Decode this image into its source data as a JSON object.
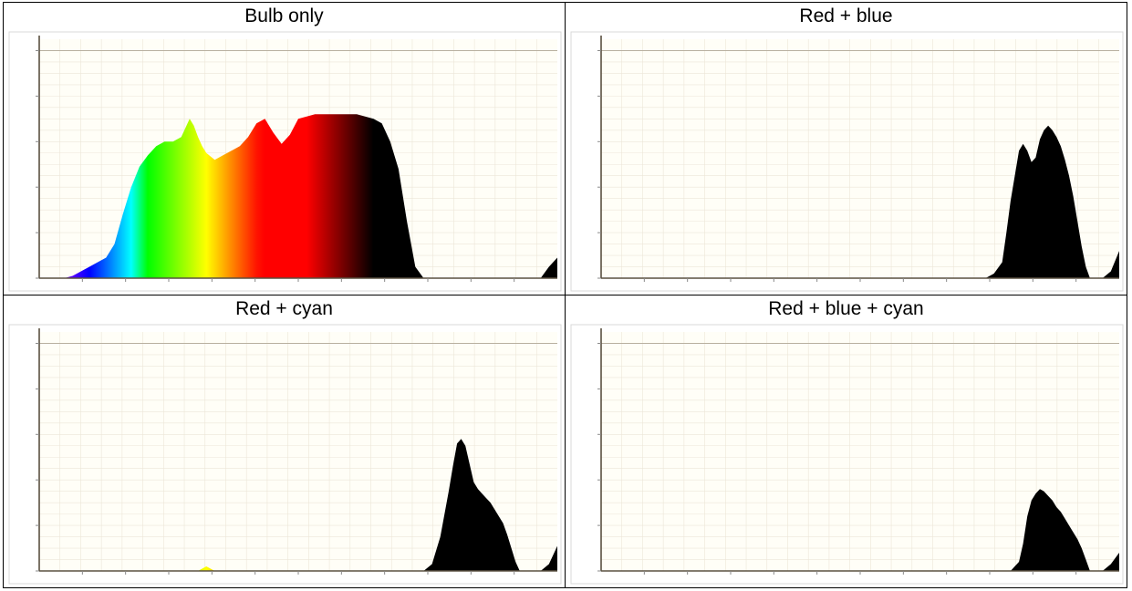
{
  "panels": [
    {
      "title": "Bulb only"
    },
    {
      "title": "Red + blue"
    },
    {
      "title": "Red + cyan"
    },
    {
      "title": "Red + blue + cyan"
    }
  ],
  "chart_data": [
    {
      "type": "area",
      "title": "Bulb only",
      "fill": "spectrum",
      "xlim": [
        380,
        1000
      ],
      "ylim": [
        0,
        105
      ],
      "x": [
        380,
        390,
        400,
        410,
        420,
        430,
        440,
        450,
        460,
        470,
        480,
        490,
        500,
        510,
        520,
        530,
        540,
        550,
        555,
        560,
        565,
        570,
        575,
        580,
        590,
        600,
        610,
        620,
        630,
        640,
        650,
        660,
        670,
        680,
        690,
        700,
        710,
        720,
        730,
        740,
        750,
        760,
        770,
        780,
        790,
        800,
        810,
        820,
        830,
        840,
        850,
        860,
        870,
        880,
        890,
        900,
        910,
        920,
        930,
        940,
        950,
        960,
        970,
        980,
        990,
        1000
      ],
      "y": [
        0,
        0,
        0,
        0,
        1,
        3,
        5,
        7,
        9,
        15,
        28,
        40,
        49,
        54,
        58,
        60,
        60,
        62,
        66,
        70,
        67,
        62,
        58,
        55,
        52,
        54,
        56,
        58,
        62,
        68,
        70,
        64,
        59,
        63,
        70,
        71,
        72,
        72,
        72,
        72,
        72,
        72,
        71,
        70,
        68,
        60,
        48,
        25,
        5,
        0,
        0,
        0,
        0,
        0,
        0,
        0,
        0,
        0,
        0,
        0,
        0,
        0,
        0,
        0,
        5,
        9
      ]
    },
    {
      "type": "area",
      "title": "Red + blue",
      "fill": "spectrum",
      "xlim": [
        380,
        1000
      ],
      "ylim": [
        0,
        105
      ],
      "x": [
        380,
        500,
        600,
        700,
        800,
        830,
        840,
        850,
        860,
        865,
        870,
        875,
        880,
        885,
        890,
        895,
        900,
        905,
        910,
        915,
        920,
        925,
        930,
        935,
        940,
        945,
        950,
        955,
        960,
        965,
        970,
        980,
        990,
        1000
      ],
      "y": [
        0,
        0,
        0,
        0,
        0,
        0,
        0,
        2,
        7,
        20,
        34,
        45,
        56,
        59,
        56,
        51,
        53,
        61,
        65,
        67,
        65,
        62,
        58,
        52,
        45,
        36,
        25,
        14,
        5,
        0,
        0,
        0,
        3,
        12
      ]
    },
    {
      "type": "area",
      "title": "Red + cyan",
      "fill": "spectrum",
      "xlim": [
        380,
        1000
      ],
      "ylim": [
        0,
        105
      ],
      "x": [
        380,
        470,
        560,
        570,
        575,
        580,
        585,
        590,
        600,
        700,
        800,
        830,
        840,
        850,
        860,
        870,
        875,
        880,
        885,
        890,
        895,
        900,
        905,
        910,
        915,
        920,
        925,
        930,
        935,
        940,
        945,
        950,
        955,
        960,
        965,
        970,
        980,
        990,
        1000
      ],
      "y": [
        0,
        0,
        0,
        0,
        1,
        2,
        1,
        0,
        0,
        0,
        0,
        0,
        0,
        3,
        15,
        35,
        46,
        56,
        58,
        55,
        47,
        39,
        36,
        34,
        32,
        30,
        27,
        24,
        21,
        16,
        10,
        4,
        0,
        0,
        0,
        0,
        0,
        3,
        11
      ]
    },
    {
      "type": "area",
      "title": "Red + blue + cyan",
      "fill": "spectrum",
      "xlim": [
        380,
        1000
      ],
      "ylim": [
        0,
        105
      ],
      "x": [
        380,
        500,
        600,
        700,
        800,
        850,
        860,
        870,
        880,
        885,
        890,
        895,
        900,
        905,
        910,
        915,
        920,
        925,
        930,
        935,
        940,
        945,
        950,
        955,
        960,
        965,
        970,
        980,
        990,
        1000
      ],
      "y": [
        0,
        0,
        0,
        0,
        0,
        0,
        0,
        0,
        4,
        12,
        24,
        31,
        34,
        36,
        35,
        33,
        31,
        28,
        26,
        23,
        20,
        17,
        14,
        10,
        5,
        0,
        0,
        0,
        3,
        8
      ]
    }
  ]
}
